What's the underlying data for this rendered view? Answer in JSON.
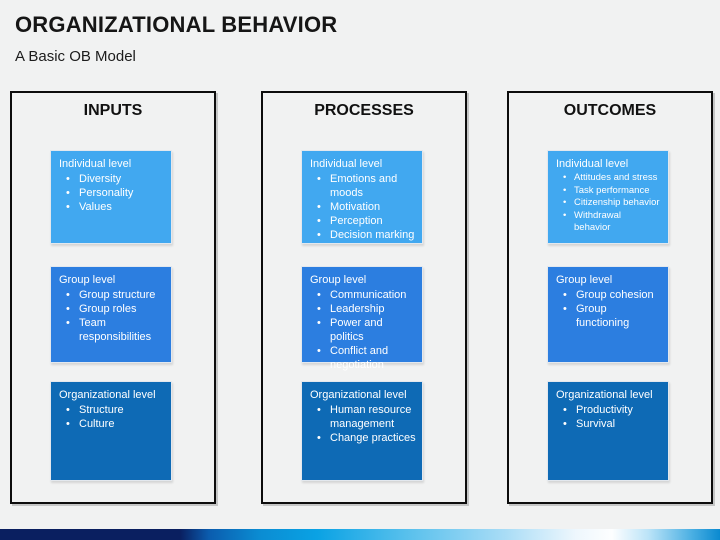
{
  "slide": {
    "title": "ORGANIZATIONAL BEHAVIOR",
    "subtitle": "A Basic OB Model"
  },
  "colors": {
    "background": "#f1f2f2",
    "level1": "#41a8f0",
    "level2": "#2c7ee0",
    "level3": "#0e6ab5",
    "bar_navy": "#0a1f60",
    "bar_azure": "#0aa2e4",
    "bar_light": "#eef7fd",
    "bar_right": "#0a8ad0"
  },
  "columns": [
    {
      "heading": "INPUTS",
      "boxes": [
        {
          "level": "Individual level",
          "items": [
            "Diversity",
            "Personality",
            "Values"
          ]
        },
        {
          "level": "Group level",
          "items": [
            "Group structure",
            "Group roles",
            "Team responsibilities"
          ]
        },
        {
          "level": "Organizational level",
          "items": [
            "Structure",
            "Culture"
          ]
        }
      ]
    },
    {
      "heading": "PROCESSES",
      "boxes": [
        {
          "level": "Individual level",
          "items": [
            "Emotions and moods",
            "Motivation",
            "Perception",
            "Decision marking"
          ]
        },
        {
          "level": "Group level",
          "items": [
            "Communication",
            "Leadership",
            "Power and politics",
            "Conflict and negotiation"
          ]
        },
        {
          "level": "Organizational level",
          "items": [
            "Human resource management",
            "Change practices"
          ]
        }
      ]
    },
    {
      "heading": "OUTCOMES",
      "boxes": [
        {
          "level": "Individual level",
          "small": true,
          "items": [
            "Attitudes and stress",
            "Task performance",
            "Citizenship behavior",
            "Withdrawal\nbehavior"
          ]
        },
        {
          "level": "Group level",
          "items": [
            "Group cohesion",
            "Group\nfunctioning"
          ]
        },
        {
          "level": "Organizational level",
          "items": [
            "Productivity",
            "Survival"
          ]
        }
      ]
    }
  ]
}
